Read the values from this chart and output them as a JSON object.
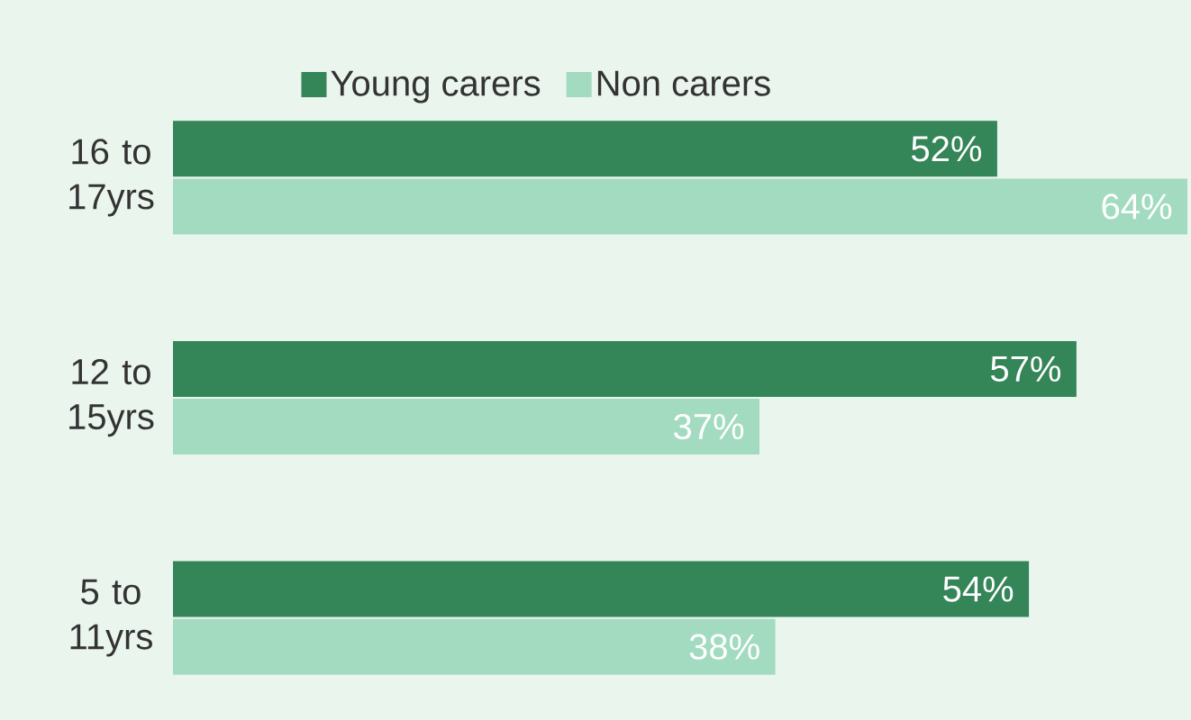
{
  "chart_data": {
    "type": "bar",
    "orientation": "horizontal",
    "categories": [
      "16 to 17yrs",
      "12 to 15yrs",
      "5 to 11yrs"
    ],
    "series": [
      {
        "name": "Young carers",
        "color": "#348558",
        "values": [
          52,
          57,
          54
        ],
        "value_labels": [
          "52%",
          "57%",
          "54%"
        ]
      },
      {
        "name": "Non carers",
        "color": "#a3dbc0",
        "values": [
          64,
          37,
          38
        ],
        "value_labels": [
          "64%",
          "37%",
          "38%"
        ]
      }
    ],
    "xlim": [
      0,
      64
    ],
    "tick_labels": "y",
    "legend": "top"
  }
}
